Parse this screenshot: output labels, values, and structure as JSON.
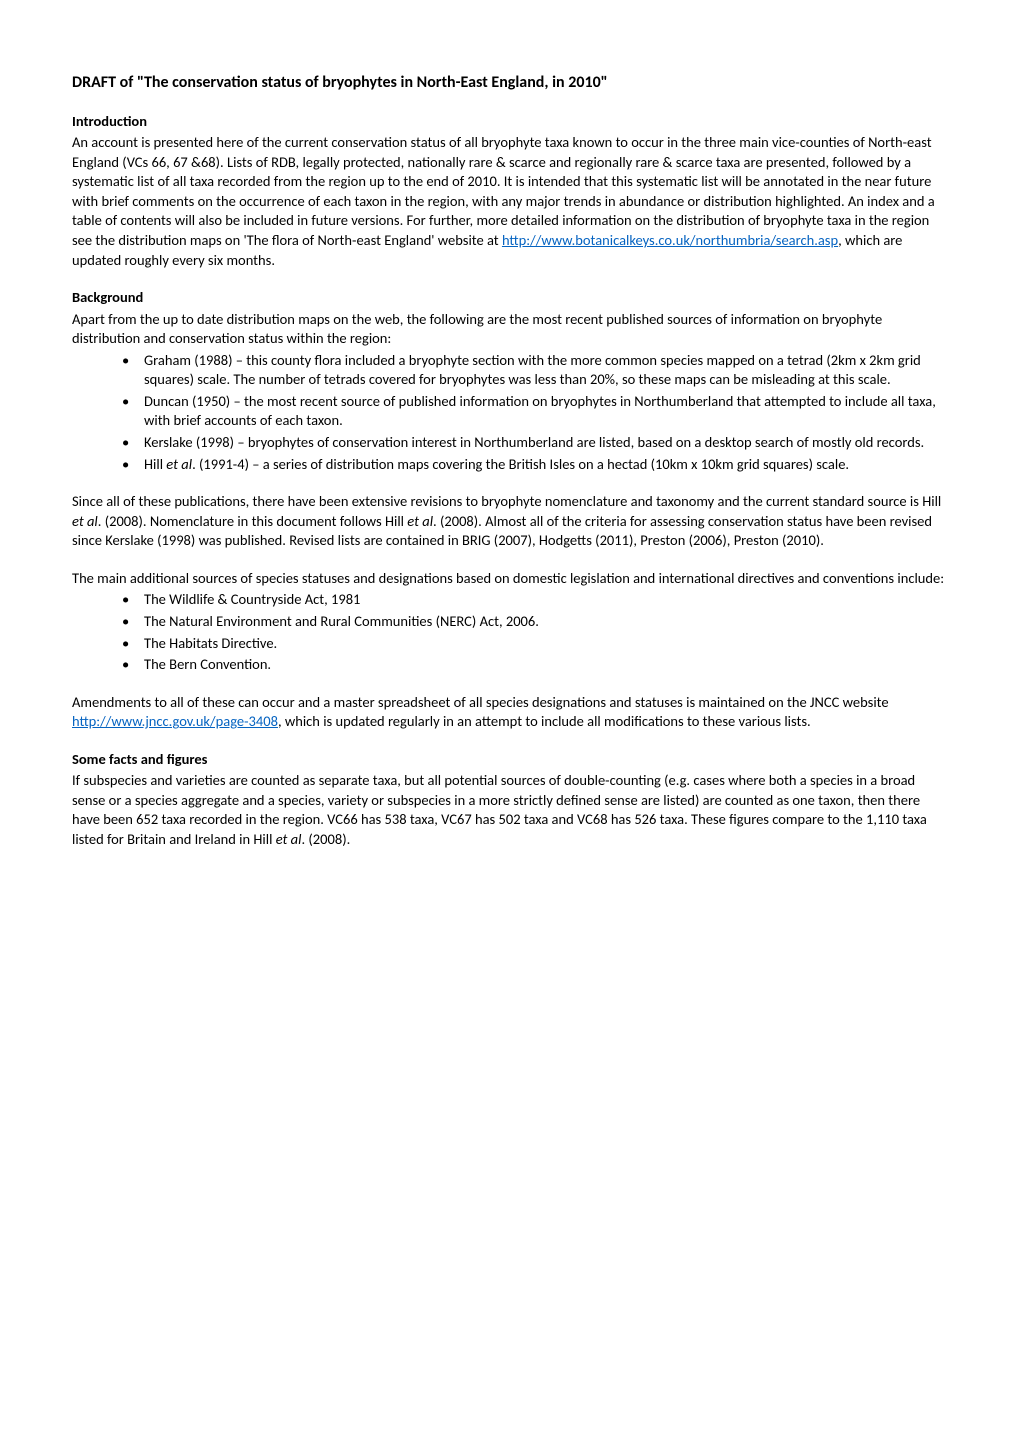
{
  "title": "DRAFT of \"The conservation status of bryophytes in North-East England, in 2010\"",
  "sections": {
    "intro": {
      "heading": "Introduction",
      "p1a": "An account is presented here of the current conservation status of all bryophyte taxa known to occur in the three main vice-counties of North-east England (VCs 66, 67 &68). Lists of RDB, legally protected, nationally rare & scarce and regionally rare & scarce taxa are presented, followed by a systematic list of all taxa recorded from the region up to the end of 2010. It is intended that this systematic list will be annotated in the near future with brief comments on the occurrence of each taxon in the region, with any major trends in abundance or distribution highlighted. An index and a table of contents will also be included in future versions. For further, more detailed information on the distribution of bryophyte taxa in the region see the distribution maps on 'The flora of North-east England' website at ",
      "link1": "http://www.botanicalkeys.co.uk/northumbria/search.asp",
      "p1b": ", which are updated roughly every six months."
    },
    "background": {
      "heading": "Background",
      "p1": "Apart from the up to date distribution maps on the web, the following are the most recent published sources of information on bryophyte distribution and conservation status within the region:",
      "bullets": [
        "Graham (1988) – this county flora included a bryophyte section with the more common species mapped on a tetrad (2km x 2km grid squares) scale. The number of tetrads covered for bryophytes was less than 20%, so these maps can be misleading at this scale.",
        "Duncan (1950) – the most recent source of published information on bryophytes in Northumberland that attempted to include all taxa, with brief accounts of each taxon.",
        "Kerslake (1998) – bryophytes of conservation interest in Northumberland are listed, based on a desktop search of mostly old records."
      ],
      "bullet4_a": "Hill ",
      "bullet4_em": "et al",
      "bullet4_b": ". (1991-4) – a series of distribution maps covering the British Isles on a hectad (10km x 10km grid squares) scale.",
      "p2_a": "Since all of these publications, there have been extensive revisions to bryophyte nomenclature and taxonomy and the current standard source is Hill ",
      "p2_em1": "et al",
      "p2_b": ". (2008). Nomenclature in this document follows Hill ",
      "p2_em2": "et al",
      "p2_c": ". (2008). Almost all of the criteria for assessing conservation status have been revised since Kerslake (1998) was published. Revised lists are contained in BRIG (2007), Hodgetts (2011), Preston (2006), Preston (2010).",
      "p3": "The main additional sources of species statuses and designations based on domestic legislation and international directives and conventions include:",
      "bullets2": [
        "The Wildlife & Countryside Act, 1981",
        "The Natural Environment and Rural Communities (NERC) Act, 2006.",
        "The Habitats Directive.",
        "The Bern Convention."
      ],
      "p4a": "Amendments to all of these can occur and a master spreadsheet of all species designations and statuses is maintained on the JNCC website ",
      "link2": "http://www.jncc.gov.uk/page-3408",
      "p4b": ", which is updated regularly in an attempt to include all modifications to these various lists."
    },
    "facts": {
      "heading": "Some facts and figures",
      "p1_a": "If subspecies and varieties are counted as separate taxa, but all potential sources of double-counting (e.g. cases where both a species in a broad sense or a species aggregate and a species, variety or subspecies in a more strictly defined sense are listed) are counted as one taxon, then there have been 652 taxa recorded in the region. VC66 has 538 taxa, VC67 has 502 taxa and VC68 has 526 taxa. These figures compare to the 1,110 taxa listed for Britain and Ireland in Hill ",
      "p1_em": "et al",
      "p1_b": ". (2008)."
    }
  },
  "colors": {
    "link": "#0563c1",
    "text": "#000000",
    "bg": "#ffffff"
  }
}
